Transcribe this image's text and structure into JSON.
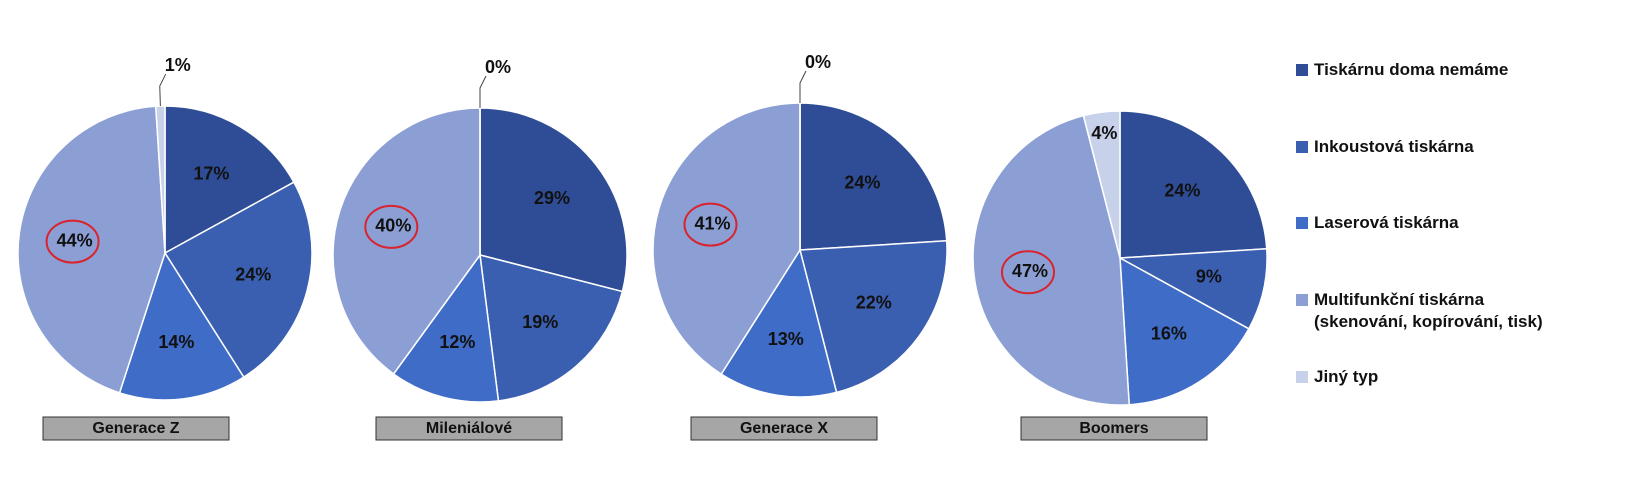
{
  "chart_data": [
    {
      "type": "pie",
      "title": "Generace Z",
      "categories": [
        "Tiskárnu doma nemáme",
        "Inkoustová tiskárna",
        "Laserová tiskárna",
        "Multifunkční tiskárna (skenování, kopírování, tisk)",
        "Jiný typ"
      ],
      "values": [
        17,
        24,
        14,
        44,
        1
      ],
      "value_labels": [
        "17%",
        "24%",
        "14%",
        "44%",
        "1%"
      ],
      "colors": [
        "#2f4d96",
        "#3a5fb0",
        "#3f6cc6",
        "#8c9fd4",
        "#c8d1ea"
      ]
    },
    {
      "type": "pie",
      "title": "Mileniálové",
      "categories": [
        "Tiskárnu doma nemáme",
        "Inkoustová tiskárna",
        "Laserová tiskárna",
        "Multifunkční tiskárna (skenování, kopírování, tisk)",
        "Jiný typ"
      ],
      "values": [
        29,
        19,
        12,
        40,
        0
      ],
      "value_labels": [
        "29%",
        "19%",
        "12%",
        "40%",
        "0%"
      ],
      "colors": [
        "#2f4d96",
        "#3a5fb0",
        "#3f6cc6",
        "#8c9fd4",
        "#c8d1ea"
      ]
    },
    {
      "type": "pie",
      "title": "Generace X",
      "categories": [
        "Tiskárnu doma nemáme",
        "Inkoustová tiskárna",
        "Laserová tiskárna",
        "Multifunkční tiskárna (skenování, kopírování, tisk)",
        "Jiný typ"
      ],
      "values": [
        24,
        22,
        13,
        41,
        0
      ],
      "value_labels": [
        "24%",
        "22%",
        "13%",
        "41%",
        "0%"
      ],
      "colors": [
        "#2f4d96",
        "#3a5fb0",
        "#3f6cc6",
        "#8c9fd4",
        "#c8d1ea"
      ]
    },
    {
      "type": "pie",
      "title": "Boomers",
      "categories": [
        "Tiskárnu doma nemáme",
        "Inkoustová tiskárna",
        "Laserová tiskárna",
        "Multifunkční tiskárna (skenování, kopírování, tisk)",
        "Jiný typ"
      ],
      "values": [
        24,
        9,
        16,
        47,
        4
      ],
      "value_labels": [
        "24%",
        "9%",
        "16%",
        "47%",
        "4%"
      ],
      "colors": [
        "#2f4d96",
        "#3a5fb0",
        "#3f6cc6",
        "#8c9fd4",
        "#c8d1ea"
      ]
    }
  ]
}
